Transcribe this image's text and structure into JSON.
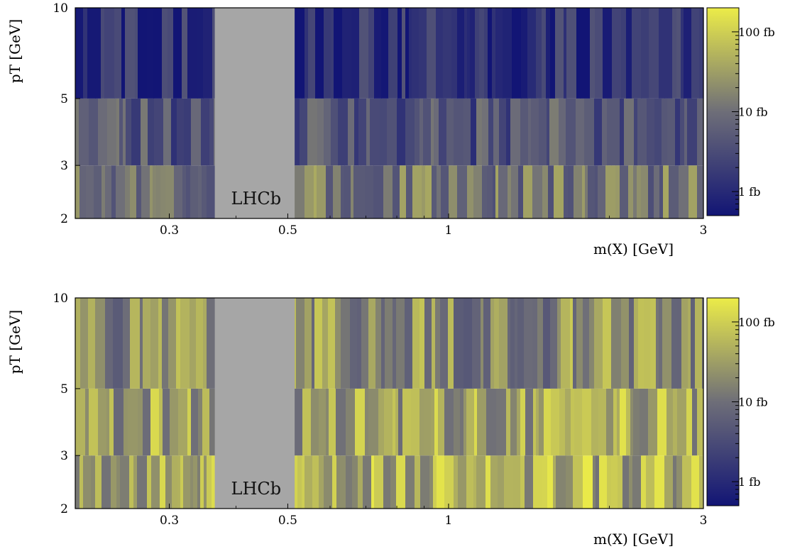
{
  "chart_data": [
    {
      "type": "heatmap",
      "xlabel": "m(X) [GeV]",
      "ylabel": "pT [GeV]",
      "x_scale": "log",
      "y_scale": "log",
      "xlim": [
        0.2,
        3
      ],
      "ylim": [
        2,
        10
      ],
      "x_ticks": [
        "0.3",
        "0.5",
        "1",
        "3"
      ],
      "y_ticks": [
        "2",
        "3",
        "5",
        "10"
      ],
      "pt_bins": [
        [
          2,
          3
        ],
        [
          3,
          5
        ],
        [
          5,
          10
        ]
      ],
      "masked_region": {
        "label": "LHCb",
        "x_range": [
          0.365,
          0.515
        ],
        "color": "#a6a6a6"
      },
      "colorbar": {
        "scale": "log",
        "range_fb": [
          0.5,
          200
        ],
        "tick_labels": [
          "1 fb",
          "10 fb",
          "100 fb"
        ],
        "colors": [
          "#121575",
          "#6e6e78",
          "#ecec48"
        ]
      },
      "row_levels_fb": {
        "2-3": 12,
        "3-5": 4,
        "5-10": 1.2
      },
      "variability": 1.1,
      "seed": 17
    },
    {
      "type": "heatmap",
      "xlabel": "m(X) [GeV]",
      "ylabel": "pT [GeV]",
      "x_scale": "log",
      "y_scale": "log",
      "xlim": [
        0.2,
        3
      ],
      "ylim": [
        2,
        10
      ],
      "x_ticks": [
        "0.3",
        "0.5",
        "1",
        "3"
      ],
      "y_ticks": [
        "2",
        "3",
        "5",
        "10"
      ],
      "pt_bins": [
        [
          2,
          3
        ],
        [
          3,
          5
        ],
        [
          5,
          10
        ]
      ],
      "masked_region": {
        "label": "LHCb",
        "x_range": [
          0.365,
          0.515
        ],
        "color": "#a6a6a6"
      },
      "colorbar": {
        "scale": "log",
        "range_fb": [
          0.5,
          200
        ],
        "tick_labels": [
          "1 fb",
          "10 fb",
          "100 fb"
        ],
        "colors": [
          "#121575",
          "#6e6e78",
          "#ecec48"
        ]
      },
      "row_levels_fb": {
        "2-3": 45,
        "3-5": 35,
        "5-10": 20
      },
      "variability": 1.3,
      "seed": 53
    }
  ]
}
